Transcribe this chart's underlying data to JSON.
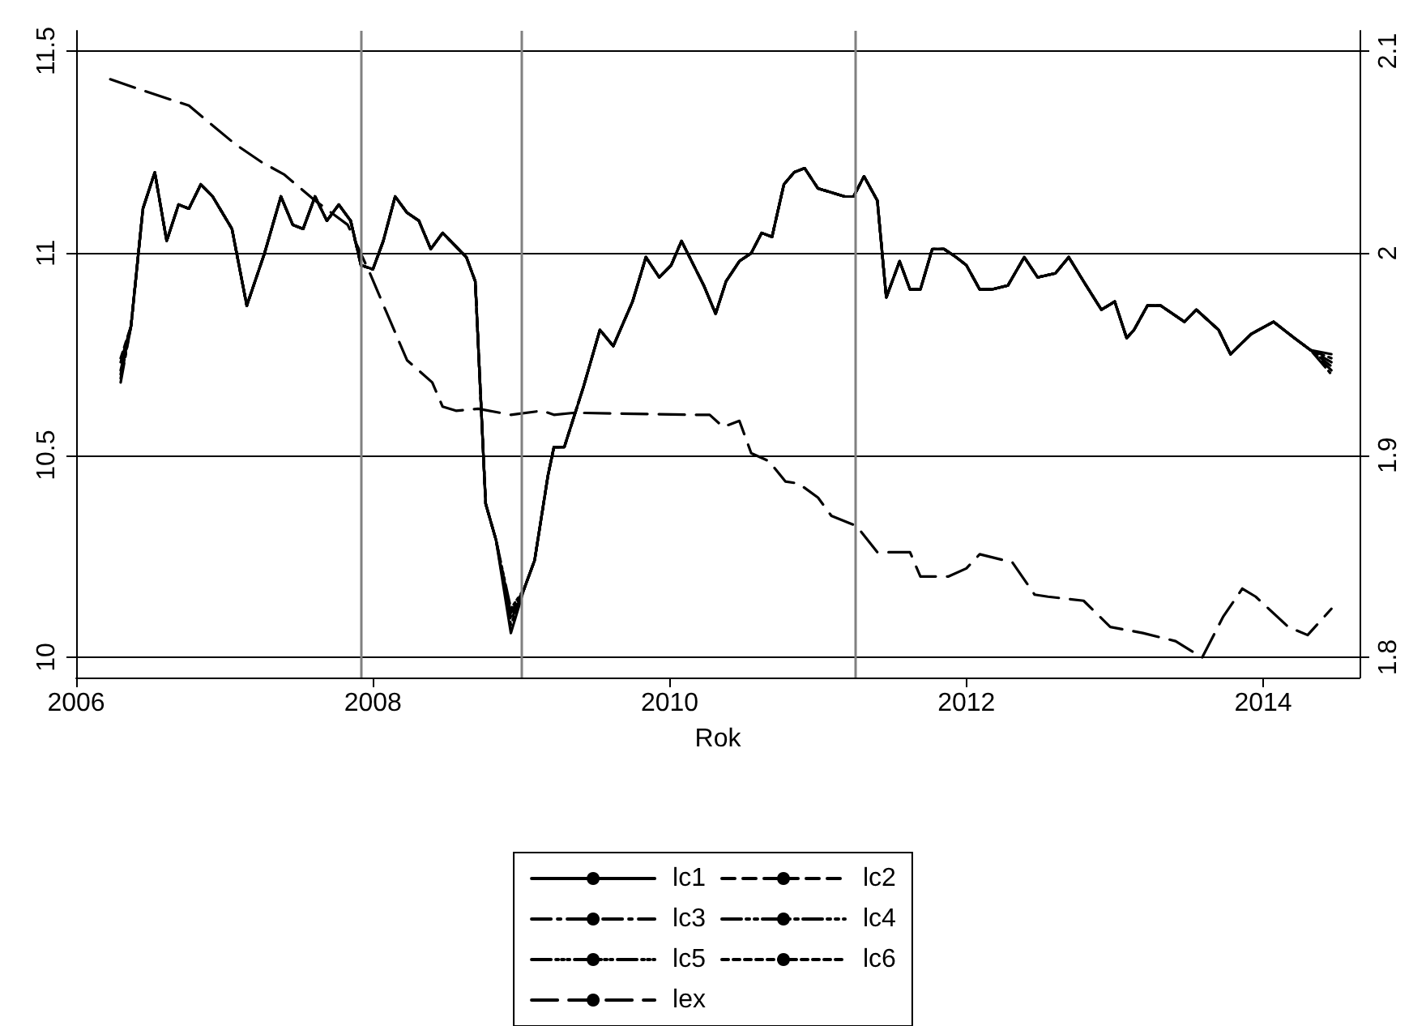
{
  "chart_data": {
    "type": "line",
    "xlabel": "Rok",
    "xlim": [
      2006,
      2014.65
    ],
    "xticks": [
      2006,
      2008,
      2010,
      2012,
      2014
    ],
    "ylim": [
      9.95,
      11.55
    ],
    "yticks": [
      10,
      10.5,
      11,
      11.5
    ],
    "y2lim": [
      1.79,
      2.11
    ],
    "y2ticks": [
      1.8,
      1.9,
      2,
      2.1
    ],
    "grid": "y",
    "legend": "bottom",
    "marker": "none",
    "x": [
      2006.3,
      2006.37,
      2006.45,
      2006.53,
      2006.61,
      2006.69,
      2006.76,
      2006.84,
      2006.92,
      2007.05,
      2007.15,
      2007.27,
      2007.38,
      2007.46,
      2007.53,
      2007.61,
      2007.69,
      2007.77,
      2007.85,
      2007.92,
      2008.0,
      2008.07,
      2008.15,
      2008.23,
      2008.31,
      2008.39,
      2008.47,
      2008.55,
      2008.63,
      2008.69,
      2008.76,
      2008.83,
      2008.93,
      2009.02,
      2009.09,
      2009.18,
      2009.22,
      2009.29,
      2009.42,
      2009.53,
      2009.62,
      2009.75,
      2009.84,
      2009.93,
      2010.01,
      2010.08,
      2010.23,
      2010.31,
      2010.38,
      2010.47,
      2010.55,
      2010.62,
      2010.69,
      2010.77,
      2010.84,
      2010.91,
      2011.0,
      2011.09,
      2011.18,
      2011.24,
      2011.31,
      2011.4,
      2011.46,
      2011.55,
      2011.62,
      2011.69,
      2011.77,
      2011.85,
      2011.93,
      2012.0,
      2012.09,
      2012.17,
      2012.28,
      2012.39,
      2012.48,
      2012.6,
      2012.69,
      2012.79,
      2012.91,
      2013.0,
      2013.08,
      2013.13,
      2013.22,
      2013.31,
      2013.47,
      2013.55,
      2013.7,
      2013.78,
      2013.92,
      2014.07,
      2014.21,
      2014.32,
      2014.46
    ],
    "series": [
      {
        "name": "lc1",
        "color": "#000000",
        "line_style": "solid",
        "values": [
          10.73,
          10.82,
          11.11,
          11.2,
          11.03,
          11.12,
          11.11,
          11.17,
          11.14,
          11.06,
          10.87,
          11.0,
          11.14,
          11.07,
          11.06,
          11.14,
          11.08,
          11.12,
          11.08,
          10.97,
          10.96,
          11.03,
          11.14,
          11.1,
          11.08,
          11.01,
          11.05,
          11.02,
          10.99,
          10.93,
          10.38,
          10.29,
          10.06,
          10.17,
          10.24,
          10.45,
          10.52,
          10.52,
          10.67,
          10.81,
          10.77,
          10.88,
          10.99,
          10.94,
          10.97,
          11.03,
          10.92,
          10.85,
          10.93,
          10.98,
          11.0,
          11.05,
          11.04,
          11.17,
          11.2,
          11.21,
          11.16,
          11.15,
          11.14,
          11.14,
          11.19,
          11.13,
          10.89,
          10.98,
          10.91,
          10.91,
          11.01,
          11.01,
          10.99,
          10.97,
          10.91,
          10.91,
          10.92,
          10.99,
          10.94,
          10.95,
          10.99,
          10.93,
          10.86,
          10.88,
          10.79,
          10.81,
          10.87,
          10.87,
          10.83,
          10.86,
          10.81,
          10.75,
          10.8,
          10.83,
          10.79,
          10.76,
          10.75
        ]
      },
      {
        "name": "lc2",
        "color": "#000000",
        "line_style": "dashed",
        "values": [
          10.7,
          10.82,
          11.11,
          11.2,
          11.03,
          11.12,
          11.11,
          11.17,
          11.14,
          11.06,
          10.87,
          11.0,
          11.14,
          11.07,
          11.06,
          11.14,
          11.08,
          11.12,
          11.08,
          10.97,
          10.96,
          11.03,
          11.14,
          11.1,
          11.08,
          11.01,
          11.05,
          11.02,
          10.99,
          10.93,
          10.38,
          10.29,
          10.09,
          10.17,
          10.24,
          10.45,
          10.52,
          10.52,
          10.67,
          10.81,
          10.77,
          10.88,
          10.99,
          10.94,
          10.97,
          11.03,
          10.92,
          10.85,
          10.93,
          10.98,
          11.0,
          11.05,
          11.04,
          11.17,
          11.2,
          11.21,
          11.16,
          11.15,
          11.14,
          11.14,
          11.19,
          11.13,
          10.89,
          10.98,
          10.91,
          10.91,
          11.01,
          11.01,
          10.99,
          10.97,
          10.91,
          10.91,
          10.92,
          10.99,
          10.94,
          10.95,
          10.99,
          10.93,
          10.86,
          10.88,
          10.79,
          10.81,
          10.87,
          10.87,
          10.83,
          10.86,
          10.81,
          10.75,
          10.8,
          10.83,
          10.79,
          10.76,
          10.72
        ]
      },
      {
        "name": "lc3",
        "color": "#000000",
        "line_style": "dashed",
        "values": [
          10.68,
          10.82,
          11.11,
          11.2,
          11.03,
          11.12,
          11.11,
          11.17,
          11.14,
          11.06,
          10.87,
          11.0,
          11.14,
          11.07,
          11.06,
          11.14,
          11.08,
          11.12,
          11.08,
          10.97,
          10.96,
          11.03,
          11.14,
          11.1,
          11.08,
          11.01,
          11.05,
          11.02,
          10.99,
          10.93,
          10.38,
          10.29,
          10.11,
          10.17,
          10.24,
          10.45,
          10.52,
          10.52,
          10.67,
          10.81,
          10.77,
          10.88,
          10.99,
          10.94,
          10.97,
          11.03,
          10.92,
          10.85,
          10.93,
          10.98,
          11.0,
          11.05,
          11.04,
          11.17,
          11.2,
          11.21,
          11.16,
          11.15,
          11.14,
          11.14,
          11.19,
          11.13,
          10.89,
          10.98,
          10.91,
          10.91,
          11.01,
          11.01,
          10.99,
          10.97,
          10.91,
          10.91,
          10.92,
          10.99,
          10.94,
          10.95,
          10.99,
          10.93,
          10.86,
          10.88,
          10.79,
          10.81,
          10.87,
          10.87,
          10.83,
          10.86,
          10.81,
          10.75,
          10.8,
          10.83,
          10.79,
          10.76,
          10.71
        ]
      },
      {
        "name": "lc4",
        "color": "#000000",
        "line_style": "dashed",
        "values": [
          10.71,
          10.82,
          11.11,
          11.2,
          11.03,
          11.12,
          11.11,
          11.17,
          11.14,
          11.06,
          10.87,
          11.0,
          11.14,
          11.07,
          11.06,
          11.14,
          11.08,
          11.12,
          11.08,
          10.97,
          10.96,
          11.03,
          11.14,
          11.1,
          11.08,
          11.01,
          11.05,
          11.02,
          10.99,
          10.93,
          10.38,
          10.29,
          10.08,
          10.17,
          10.24,
          10.45,
          10.52,
          10.52,
          10.67,
          10.81,
          10.77,
          10.88,
          10.99,
          10.94,
          10.97,
          11.03,
          10.92,
          10.85,
          10.93,
          10.98,
          11.0,
          11.05,
          11.04,
          11.17,
          11.2,
          11.21,
          11.16,
          11.15,
          11.14,
          11.14,
          11.19,
          11.13,
          10.89,
          10.98,
          10.91,
          10.91,
          11.01,
          11.01,
          10.99,
          10.97,
          10.91,
          10.91,
          10.92,
          10.99,
          10.94,
          10.95,
          10.99,
          10.93,
          10.86,
          10.88,
          10.79,
          10.81,
          10.87,
          10.87,
          10.83,
          10.86,
          10.81,
          10.75,
          10.8,
          10.83,
          10.79,
          10.76,
          10.73
        ]
      },
      {
        "name": "lc5",
        "color": "#000000",
        "line_style": "dashed",
        "values": [
          10.69,
          10.82,
          11.11,
          11.2,
          11.03,
          11.12,
          11.11,
          11.17,
          11.14,
          11.06,
          10.87,
          11.0,
          11.14,
          11.07,
          11.06,
          11.14,
          11.08,
          11.12,
          11.08,
          10.97,
          10.96,
          11.03,
          11.14,
          11.1,
          11.08,
          11.01,
          11.05,
          11.02,
          10.99,
          10.93,
          10.38,
          10.29,
          10.12,
          10.17,
          10.24,
          10.45,
          10.52,
          10.52,
          10.67,
          10.81,
          10.77,
          10.88,
          10.99,
          10.94,
          10.97,
          11.03,
          10.92,
          10.85,
          10.93,
          10.98,
          11.0,
          11.05,
          11.04,
          11.17,
          11.2,
          11.21,
          11.16,
          11.15,
          11.14,
          11.14,
          11.19,
          11.13,
          10.89,
          10.98,
          10.91,
          10.91,
          11.01,
          11.01,
          10.99,
          10.97,
          10.91,
          10.91,
          10.92,
          10.99,
          10.94,
          10.95,
          10.99,
          10.93,
          10.86,
          10.88,
          10.79,
          10.81,
          10.87,
          10.87,
          10.83,
          10.86,
          10.81,
          10.75,
          10.8,
          10.83,
          10.79,
          10.76,
          10.7
        ]
      },
      {
        "name": "lc6",
        "color": "#000000",
        "line_style": "dotted",
        "values": [
          10.74,
          10.82,
          11.11,
          11.2,
          11.03,
          11.12,
          11.11,
          11.17,
          11.14,
          11.06,
          10.87,
          11.0,
          11.14,
          11.07,
          11.06,
          11.14,
          11.08,
          11.12,
          11.08,
          10.97,
          10.96,
          11.03,
          11.14,
          11.1,
          11.08,
          11.01,
          11.05,
          11.02,
          10.99,
          10.93,
          10.38,
          10.29,
          10.1,
          10.17,
          10.24,
          10.45,
          10.52,
          10.52,
          10.67,
          10.81,
          10.77,
          10.88,
          10.99,
          10.94,
          10.97,
          11.03,
          10.92,
          10.85,
          10.93,
          10.98,
          11.0,
          11.05,
          11.04,
          11.17,
          11.2,
          11.21,
          11.16,
          11.15,
          11.14,
          11.14,
          11.19,
          11.13,
          10.89,
          10.98,
          10.91,
          10.91,
          11.01,
          11.01,
          10.99,
          10.97,
          10.91,
          10.91,
          10.92,
          10.99,
          10.94,
          10.95,
          10.99,
          10.93,
          10.86,
          10.88,
          10.79,
          10.81,
          10.87,
          10.87,
          10.83,
          10.86,
          10.81,
          10.75,
          10.8,
          10.83,
          10.79,
          10.76,
          10.74
        ]
      },
      {
        "name": "lex",
        "color": "#000000",
        "line_style": "dashed",
        "axis": "y2",
        "x": [
          2006.23,
          2006.47,
          2006.76,
          2006.89,
          2007.07,
          2007.25,
          2007.4,
          2007.61,
          2007.83,
          2007.98,
          2008.09,
          2008.23,
          2008.4,
          2008.47,
          2008.56,
          2008.71,
          2008.93,
          2009.14,
          2009.22,
          2009.36,
          2010.16,
          2010.27,
          2010.36,
          2010.47,
          2010.55,
          2010.67,
          2010.78,
          2010.87,
          2011.0,
          2011.09,
          2011.26,
          2011.4,
          2011.62,
          2011.69,
          2011.88,
          2012.0,
          2012.09,
          2012.31,
          2012.46,
          2012.55,
          2012.79,
          2012.97,
          2013.19,
          2013.41,
          2013.52,
          2013.59,
          2013.73,
          2013.86,
          2013.95,
          2014.17,
          2014.3,
          2014.46
        ],
        "values": [
          2.086,
          2.08,
          2.073,
          2.065,
          2.054,
          2.045,
          2.039,
          2.026,
          2.014,
          1.99,
          1.971,
          1.947,
          1.936,
          1.924,
          1.922,
          1.923,
          1.92,
          1.922,
          1.92,
          1.921,
          1.92,
          1.92,
          1.914,
          1.917,
          1.901,
          1.897,
          1.887,
          1.886,
          1.879,
          1.87,
          1.865,
          1.852,
          1.852,
          1.84,
          1.84,
          1.844,
          1.851,
          1.847,
          1.831,
          1.83,
          1.828,
          1.815,
          1.812,
          1.808,
          1.803,
          1.8,
          1.82,
          1.834,
          1.83,
          1.815,
          1.811,
          1.824
        ]
      }
    ],
    "ref_lines": [
      {
        "axis": "x",
        "value": 2007.92,
        "color": "#808080"
      },
      {
        "axis": "x",
        "value": 2009.0,
        "color": "#808080"
      },
      {
        "axis": "x",
        "value": 2011.25,
        "color": "#808080"
      }
    ]
  }
}
